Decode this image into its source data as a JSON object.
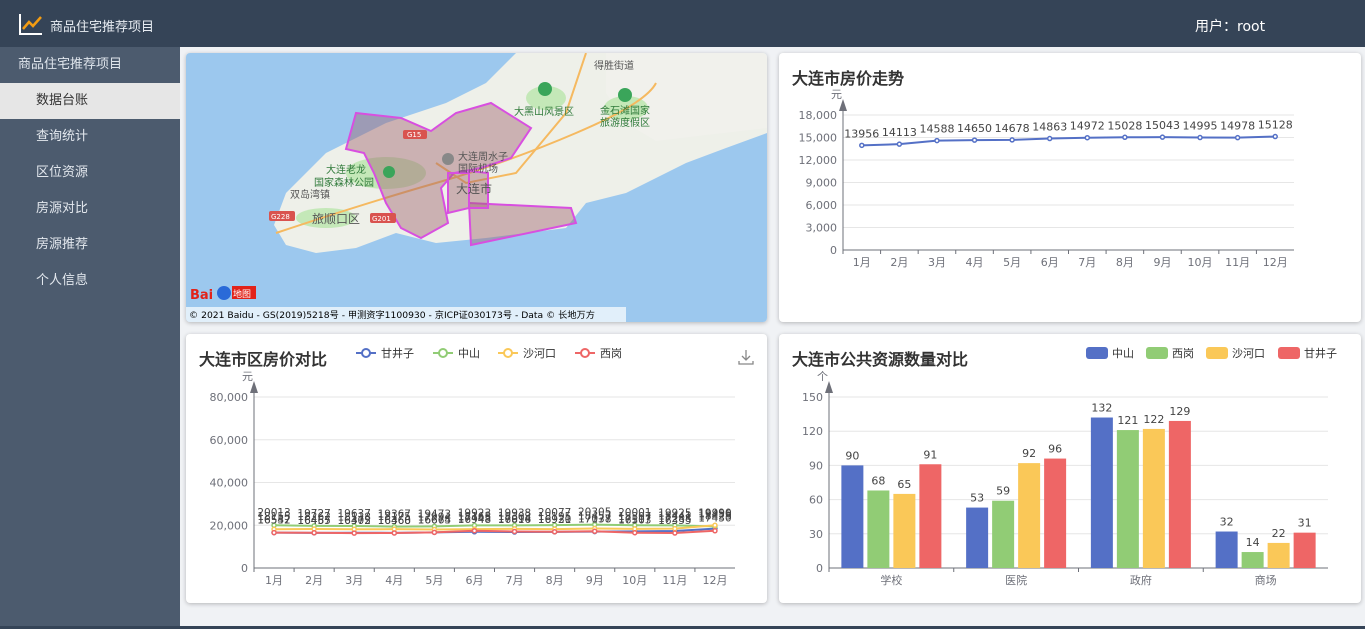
{
  "header": {
    "title": "商品住宅推荐项目",
    "user": "用户：root"
  },
  "sidebar": {
    "brand": "商品住宅推荐项目",
    "items": [
      {
        "label": "数据台账",
        "active": true
      },
      {
        "label": "查询统计"
      },
      {
        "label": "区位资源"
      },
      {
        "label": "房源对比"
      },
      {
        "label": "房源推荐"
      },
      {
        "label": "个人信息"
      }
    ]
  },
  "map": {
    "places": [
      "得胜街道",
      "大黑山风景区",
      "金石滩国家",
      "旅游度假区",
      "大连老龙",
      "国家森林公园",
      "大连周水子",
      "国际机场",
      "大连市",
      "双岛湾镇",
      "旅顺口区"
    ],
    "roads": [
      "G228",
      "G201",
      "G15"
    ],
    "copyright": "© 2021 Baidu - GS(2019)5218号 - 甲测资字1100930 - 京ICP证030173号 - Data © 长地万方",
    "baidu_logo_text": "Bai",
    "baidu_logo_suffix": "地图"
  },
  "chart_data": [
    {
      "type": "line",
      "title": "大连市房价走势",
      "ylabel": "元",
      "categories": [
        "1月",
        "2月",
        "3月",
        "4月",
        "5月",
        "6月",
        "7月",
        "8月",
        "9月",
        "10月",
        "11月",
        "12月"
      ],
      "series": [
        {
          "values": [
            13956,
            14113,
            14588,
            14650,
            14678,
            14863,
            14972,
            15028,
            15043,
            14995,
            14978,
            15128
          ]
        }
      ],
      "ylim": [
        0,
        18000
      ],
      "yticks": [
        "0",
        "3,000",
        "6,000",
        "9,000",
        "12,000",
        "15,000",
        "18,000"
      ],
      "color": "#5470c6"
    },
    {
      "type": "line",
      "title": "大连市区房价对比",
      "ylabel": "元",
      "categories": [
        "1月",
        "2月",
        "3月",
        "4月",
        "5月",
        "6月",
        "7月",
        "8月",
        "9月",
        "10月",
        "11月",
        "12月"
      ],
      "series": [
        {
          "name": "甘井子",
          "color": "#5470c6",
          "values": [
            16557,
            16455,
            16475,
            16460,
            16675,
            16948,
            16816,
            16920,
            17037,
            17117,
            17288,
            18423
          ]
        },
        {
          "name": "中山",
          "color": "#91cc75",
          "values": [
            20013,
            19727,
            19637,
            19367,
            19473,
            19923,
            19938,
            20077,
            20305,
            20001,
            19925,
            19456
          ]
        },
        {
          "name": "沙河口",
          "color": "#fac858",
          "values": [
            18155,
            18262,
            18118,
            18175,
            17994,
            18165,
            18303,
            18195,
            18457,
            18307,
            18441,
            19990
          ]
        },
        {
          "name": "西岗",
          "color": "#ee6666",
          "values": [
            16542,
            16467,
            16302,
            16368,
            16664,
            17445,
            17094,
            16931,
            17178,
            16503,
            16355,
            17430
          ]
        }
      ],
      "ylim": [
        0,
        80000
      ],
      "yticks": [
        "0",
        "20,000",
        "40,000",
        "60,000",
        "80,000"
      ]
    },
    {
      "type": "bar",
      "title": "大连市公共资源数量对比",
      "ylabel": "个",
      "categories": [
        "学校",
        "医院",
        "政府",
        "商场"
      ],
      "series": [
        {
          "name": "中山",
          "color": "#5470c6",
          "values": [
            90,
            53,
            132,
            32
          ]
        },
        {
          "name": "西岗",
          "color": "#91cc75",
          "values": [
            68,
            59,
            121,
            14
          ]
        },
        {
          "name": "沙河口",
          "color": "#fac858",
          "values": [
            65,
            92,
            122,
            22
          ]
        },
        {
          "name": "甘井子",
          "color": "#ee6666",
          "values": [
            91,
            96,
            129,
            31
          ]
        }
      ],
      "ylim": [
        0,
        150
      ],
      "yticks": [
        "0",
        "30",
        "60",
        "90",
        "120",
        "150"
      ]
    }
  ]
}
